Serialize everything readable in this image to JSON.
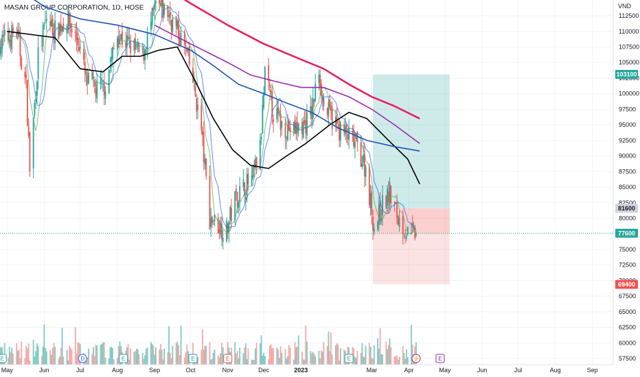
{
  "title": "MASAN GROUP CORPORATION, 1D, HOSE",
  "unit": "VND",
  "colors": {
    "up": "#26a69a",
    "down": "#ef5350",
    "volume_up": "#80cbc4",
    "volume_down": "#f7a9a7",
    "ma_fast": "#2962ff",
    "ma_short": "#4caf50",
    "ma_black": "#000000",
    "ma_purple": "#9c27b0",
    "ma_blue": "#1e50b4",
    "ma_red": "#e91e63",
    "target_zone": "#26a69a",
    "stop_zone": "#ef5350"
  },
  "chart_data": {
    "type": "candlestick",
    "ylim": [
      56500,
      115000
    ],
    "y_ticks": [
      57500,
      60000,
      62500,
      65000,
      67500,
      70000,
      72500,
      75000,
      77500,
      80000,
      82500,
      85000,
      87500,
      90000,
      92500,
      95000,
      97500,
      100000,
      102500,
      105000,
      107500,
      110000,
      112500
    ],
    "x_labels": [
      "May",
      "Jun",
      "Jul",
      "Aug",
      "Sep",
      "Oct",
      "Nov",
      "Dec",
      "2023",
      "Mar",
      "Apr",
      "May",
      "Jun",
      "Jul",
      "Aug",
      "Sep"
    ],
    "x_label_dates": [
      "2022-05-01",
      "2022-06-01",
      "2022-07-01",
      "2022-08-01",
      "2022-09-01",
      "2022-10-01",
      "2022-11-01",
      "2022-12-01",
      "2023-01-01",
      "2023-03-01",
      "2023-04-01",
      "2023-05-01",
      "2023-06-01",
      "2023-07-01",
      "2023-08-01",
      "2023-09-01"
    ],
    "price_path": [
      [
        "2022-04-25",
        108000
      ],
      [
        "2022-05-09",
        110000
      ],
      [
        "2022-05-17",
        101000
      ],
      [
        "2022-05-20",
        88000
      ],
      [
        "2022-05-27",
        106000
      ],
      [
        "2022-06-03",
        112000
      ],
      [
        "2022-06-10",
        110000
      ],
      [
        "2022-06-20",
        112000
      ],
      [
        "2022-06-30",
        108000
      ],
      [
        "2022-07-06",
        102000
      ],
      [
        "2022-07-15",
        100500
      ],
      [
        "2022-07-22",
        101500
      ],
      [
        "2022-08-01",
        109500
      ],
      [
        "2022-08-10",
        108000
      ],
      [
        "2022-08-22",
        106000
      ],
      [
        "2022-09-02",
        114000
      ],
      [
        "2022-09-12",
        113000
      ],
      [
        "2022-09-20",
        110000
      ],
      [
        "2022-09-27",
        107000
      ],
      [
        "2022-10-03",
        102000
      ],
      [
        "2022-10-10",
        94000
      ],
      [
        "2022-10-17",
        80000
      ],
      [
        "2022-10-24",
        79000
      ],
      [
        "2022-10-31",
        78000
      ],
      [
        "2022-11-07",
        83000
      ],
      [
        "2022-11-14",
        85000
      ],
      [
        "2022-11-21",
        86000
      ],
      [
        "2022-11-28",
        91000
      ],
      [
        "2022-12-02",
        103000
      ],
      [
        "2022-12-09",
        97000
      ],
      [
        "2022-12-16",
        95000
      ],
      [
        "2022-12-26",
        94000
      ],
      [
        "2023-01-04",
        95000
      ],
      [
        "2023-01-10",
        97000
      ],
      [
        "2023-01-16",
        104000
      ],
      [
        "2023-01-20",
        98000
      ],
      [
        "2023-02-03",
        94000
      ],
      [
        "2023-02-10",
        93000
      ],
      [
        "2023-02-17",
        91500
      ],
      [
        "2023-02-24",
        88000
      ],
      [
        "2023-03-03",
        78500
      ],
      [
        "2023-03-10",
        82000
      ],
      [
        "2023-03-16",
        84000
      ],
      [
        "2023-03-23",
        80000
      ],
      [
        "2023-03-31",
        77500
      ],
      [
        "2023-04-07",
        77600
      ]
    ],
    "volume_range": [
      57500,
      62500
    ],
    "moving_averages": [
      {
        "color_key": "ma_fast",
        "period": 10
      },
      {
        "color_key": "ma_short",
        "period": 5
      },
      {
        "color_key": "ma_black",
        "points": [
          [
            "2022-05-01",
            110000
          ],
          [
            "2022-06-10",
            109000
          ],
          [
            "2022-07-01",
            104000
          ],
          [
            "2022-07-20",
            103500
          ],
          [
            "2022-08-05",
            106000
          ],
          [
            "2022-08-20",
            106000
          ],
          [
            "2022-09-05",
            107000
          ],
          [
            "2022-09-20",
            107500
          ],
          [
            "2022-10-05",
            102000
          ],
          [
            "2022-10-20",
            96000
          ],
          [
            "2022-11-05",
            91000
          ],
          [
            "2022-11-20",
            88500
          ],
          [
            "2022-12-05",
            88000
          ],
          [
            "2022-12-20",
            90000
          ],
          [
            "2023-01-05",
            92000
          ],
          [
            "2023-01-25",
            95000
          ],
          [
            "2023-02-10",
            97000
          ],
          [
            "2023-02-25",
            96000
          ],
          [
            "2023-03-15",
            92500
          ],
          [
            "2023-03-31",
            89500
          ],
          [
            "2023-04-10",
            85500
          ]
        ]
      },
      {
        "color_key": "ma_blue",
        "points": [
          [
            "2022-05-01",
            118000
          ],
          [
            "2022-06-01",
            114000
          ],
          [
            "2022-07-01",
            112000
          ],
          [
            "2022-08-01",
            111000
          ],
          [
            "2022-09-01",
            109500
          ],
          [
            "2022-10-01",
            107000
          ],
          [
            "2022-10-20",
            104500
          ],
          [
            "2022-11-10",
            101500
          ],
          [
            "2022-12-01",
            100000
          ],
          [
            "2022-12-20",
            98500
          ],
          [
            "2023-01-10",
            97000
          ],
          [
            "2023-02-01",
            94500
          ],
          [
            "2023-02-25",
            92500
          ],
          [
            "2023-03-20",
            91500
          ],
          [
            "2023-04-10",
            90800
          ]
        ]
      },
      {
        "color_key": "ma_purple",
        "points": [
          [
            "2022-09-01",
            111000
          ],
          [
            "2022-10-01",
            108000
          ],
          [
            "2022-11-01",
            105000
          ],
          [
            "2022-11-20",
            103000
          ],
          [
            "2022-12-10",
            102000
          ],
          [
            "2023-01-01",
            101000
          ],
          [
            "2023-01-20",
            101000
          ],
          [
            "2023-02-10",
            99500
          ],
          [
            "2023-03-01",
            97500
          ],
          [
            "2023-03-20",
            95000
          ],
          [
            "2023-04-10",
            92000
          ]
        ]
      },
      {
        "color_key": "ma_red",
        "points": [
          [
            "2022-09-10",
            117000
          ],
          [
            "2022-10-01",
            114500
          ],
          [
            "2022-11-01",
            111000
          ],
          [
            "2022-12-01",
            108000
          ],
          [
            "2023-01-01",
            105500
          ],
          [
            "2023-01-20",
            104000
          ],
          [
            "2023-02-10",
            101500
          ],
          [
            "2023-03-01",
            99500
          ],
          [
            "2023-03-20",
            98000
          ],
          [
            "2023-04-10",
            96000
          ]
        ]
      }
    ],
    "position": {
      "start": "2023-03-02",
      "end": "2023-05-05",
      "entry": 77600,
      "stop": 81600,
      "target": 103100,
      "lower": 69400
    },
    "price_labels": [
      {
        "value": 103100,
        "text": "103100",
        "color_key": "up"
      },
      {
        "value": 81600,
        "text": "81600",
        "color_key": "neutral"
      },
      {
        "value": 77600,
        "text": "77600",
        "color_key": "up"
      },
      {
        "value": 69400,
        "text": "69400",
        "color_key": "down"
      }
    ],
    "events": [
      {
        "date": "2022-04-27",
        "label": "E",
        "color": "#26a69a"
      },
      {
        "date": "2022-07-03",
        "label": "D",
        "color": "#2962ff"
      },
      {
        "date": "2022-08-06",
        "label": "E",
        "color": "#26a69a"
      },
      {
        "date": "2022-10-03",
        "label": "E",
        "color": "#26a69a"
      },
      {
        "date": "2022-11-01",
        "label": "E",
        "color": "#ef5350"
      },
      {
        "date": "2023-02-10",
        "label": "E",
        "color": "#26a69a"
      },
      {
        "date": "2023-04-07",
        "label": "⚡",
        "color": "#9c27b0"
      },
      {
        "date": "2023-04-27",
        "label": "E",
        "color": "#9c27b0"
      }
    ]
  }
}
